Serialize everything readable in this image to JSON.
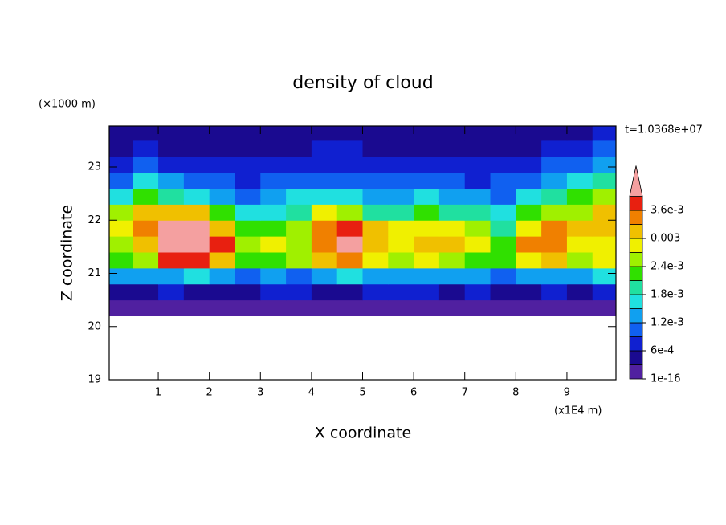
{
  "chart_data": {
    "type": "contour",
    "title": "density of cloud",
    "y_unit": "(×1000 m)",
    "x_unit": "(x1E4 m)",
    "time_label": "t=1.0368e+07",
    "xlabel": "X coordinate",
    "ylabel": "Z coordinate",
    "xlim": [
      0.04,
      9.96
    ],
    "ylim": [
      19,
      23.77
    ],
    "xticks": [
      1,
      2,
      3,
      4,
      5,
      6,
      7,
      8,
      9
    ],
    "yticks": [
      19,
      20,
      21,
      22,
      23
    ],
    "x": [
      0.25,
      0.75,
      1.25,
      1.75,
      2.25,
      2.75,
      3.25,
      3.75,
      4.25,
      4.75,
      5.25,
      5.75,
      6.25,
      6.75,
      7.25,
      7.75,
      8.25,
      8.75,
      9.25,
      9.75
    ],
    "y": [
      20.35,
      20.65,
      20.95,
      21.25,
      21.55,
      21.85,
      22.15,
      22.45,
      22.75,
      23.05,
      23.35,
      23.65
    ],
    "z": [
      [
        0.0001,
        0.0001,
        0.0001,
        0.0001,
        0.0001,
        0.0001,
        0.0001,
        0.0001,
        0.0001,
        0.0001,
        0.0001,
        0.0001,
        0.0001,
        0.0001,
        0.0001,
        0.0001,
        0.0001,
        0.0001,
        0.0001,
        0.0001
      ],
      [
        0.0004,
        0.0005,
        0.0006,
        0.0005,
        0.0004,
        0.0005,
        0.0006,
        0.0006,
        0.0005,
        0.0005,
        0.0006,
        0.0006,
        0.0006,
        0.0005,
        0.0006,
        0.0005,
        0.0005,
        0.0006,
        0.0005,
        0.0006
      ],
      [
        0.0012,
        0.0013,
        0.0014,
        0.0015,
        0.0013,
        0.0011,
        0.0012,
        0.0011,
        0.0014,
        0.0015,
        0.0014,
        0.0013,
        0.0012,
        0.0012,
        0.0013,
        0.0011,
        0.0012,
        0.0013,
        0.0014,
        0.0015
      ],
      [
        0.0022,
        0.0026,
        0.0037,
        0.0036,
        0.0031,
        0.0022,
        0.0023,
        0.0025,
        0.0031,
        0.0034,
        0.0028,
        0.0026,
        0.0027,
        0.0026,
        0.0022,
        0.0021,
        0.0028,
        0.0031,
        0.0026,
        0.0027
      ],
      [
        0.0026,
        0.0031,
        0.0045,
        0.0045,
        0.0038,
        0.0024,
        0.0028,
        0.0024,
        0.0033,
        0.004,
        0.0032,
        0.0029,
        0.0031,
        0.003,
        0.0027,
        0.0022,
        0.0034,
        0.0033,
        0.0029,
        0.0028
      ],
      [
        0.0029,
        0.0035,
        0.0042,
        0.0041,
        0.003,
        0.0021,
        0.0022,
        0.0024,
        0.0034,
        0.0037,
        0.003,
        0.0027,
        0.0028,
        0.0027,
        0.0024,
        0.002,
        0.0027,
        0.0033,
        0.003,
        0.0031
      ],
      [
        0.0024,
        0.0031,
        0.0032,
        0.003,
        0.0022,
        0.0016,
        0.0017,
        0.002,
        0.0028,
        0.0024,
        0.0019,
        0.002,
        0.0021,
        0.0019,
        0.0018,
        0.0015,
        0.0021,
        0.0024,
        0.0026,
        0.0032
      ],
      [
        0.0017,
        0.0022,
        0.002,
        0.0017,
        0.0014,
        0.0011,
        0.0012,
        0.0015,
        0.0017,
        0.0015,
        0.0013,
        0.0014,
        0.0015,
        0.0013,
        0.0012,
        0.0011,
        0.0015,
        0.0018,
        0.0021,
        0.0026
      ],
      [
        0.0011,
        0.0016,
        0.0012,
        0.0009,
        0.001,
        0.0008,
        0.0009,
        0.001,
        0.0011,
        0.001,
        0.0009,
        0.001,
        0.0011,
        0.001,
        0.0008,
        0.0009,
        0.0011,
        0.0013,
        0.0016,
        0.0019
      ],
      [
        0.0007,
        0.0011,
        0.0008,
        0.0006,
        0.0007,
        0.0006,
        0.0006,
        0.0007,
        0.0008,
        0.0008,
        0.0007,
        0.0007,
        0.0008,
        0.0007,
        0.0006,
        0.0007,
        0.0008,
        0.0009,
        0.0011,
        0.0013
      ],
      [
        0.0005,
        0.0008,
        0.0005,
        0.0004,
        0.0005,
        0.0004,
        0.0004,
        0.0005,
        0.0006,
        0.0006,
        0.0005,
        0.0005,
        0.0005,
        0.0005,
        0.0004,
        0.0005,
        0.0005,
        0.0006,
        0.0008,
        0.0009
      ],
      [
        0.0003,
        0.0005,
        0.0003,
        0.0003,
        0.0003,
        0.0003,
        0.0003,
        0.0004,
        0.0004,
        0.0004,
        0.0003,
        0.0004,
        0.0004,
        0.0003,
        0.0003,
        0.0003,
        0.0004,
        0.0004,
        0.0005,
        0.0006
      ]
    ],
    "levels": [
      1e-16,
      0.0003,
      0.0006,
      0.0009,
      0.0012,
      0.0015,
      0.0018,
      0.0021,
      0.0024,
      0.0027,
      0.003,
      0.0033,
      0.0036,
      0.0039
    ],
    "colors": [
      "#5020a0",
      "#1a0a90",
      "#1020d0",
      "#1060f0",
      "#10a0f0",
      "#20e0e0",
      "#20e0a0",
      "#30e000",
      "#a0f000",
      "#f0f000",
      "#f0c000",
      "#f08000",
      "#e82010",
      "#f4a0a0"
    ],
    "colorbar_ticks": [
      {
        "value": 1e-16,
        "label": "1e-16"
      },
      {
        "value": 0.0006,
        "label": "6e-4"
      },
      {
        "value": 0.0012,
        "label": "1.2e-3"
      },
      {
        "value": 0.0018,
        "label": "1.8e-3"
      },
      {
        "value": 0.0024,
        "label": "2.4e-3"
      },
      0.003,
      {
        "value": 0.0036,
        "label": "3.6e-3"
      }
    ]
  }
}
